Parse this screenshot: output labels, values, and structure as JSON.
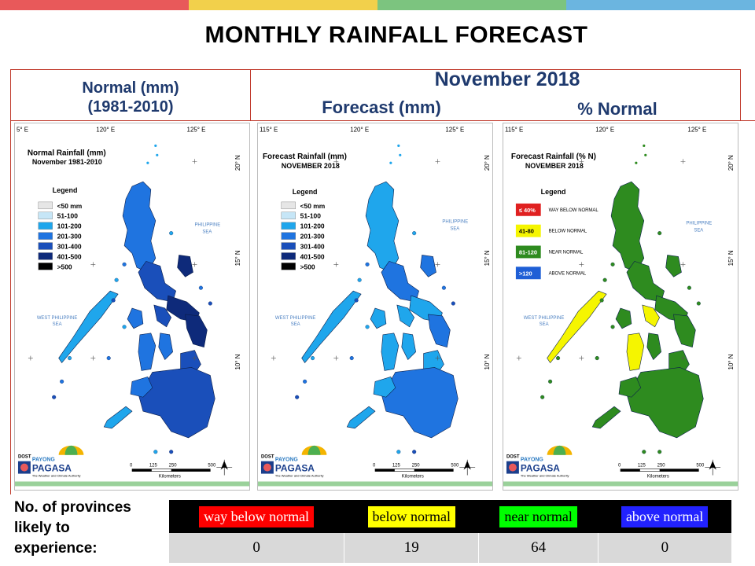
{
  "colors": {
    "topbar": [
      "#e8595a",
      "#f2d04b",
      "#7cc47f",
      "#6bb5e0"
    ],
    "rain": [
      "#e6e6e6",
      "#c6e6f7",
      "#1fa6ec",
      "#1f74e0",
      "#1a4fba",
      "#0e2a7a",
      "#000000"
    ],
    "pct": [
      "#e02020",
      "#f5f500",
      "#2e8b1f",
      "#1f5fd6"
    ]
  },
  "title": "MONTHLY RAINFALL FORECAST",
  "headers": {
    "normal_line1": "Normal (mm)",
    "normal_line2": "(1981-2010)",
    "month": "November 2018",
    "forecast": "Forecast (mm)",
    "pct": "% Normal"
  },
  "maps": {
    "normal": {
      "title_line1": "Normal Rainfall (mm)",
      "title_line2": "November 1981-2010",
      "lon_labels": [
        "5° E",
        "120° E",
        "125° E"
      ]
    },
    "forecast": {
      "title_line1": "Forecast Rainfall (mm)",
      "title_line2": "NOVEMBER 2018",
      "lon_labels": [
        "115° E",
        "120° E",
        "125° E"
      ]
    },
    "pct": {
      "title_line1": "Forecast Rainfall (% N)",
      "title_line2": "NOVEMBER 2018",
      "lon_labels": [
        "115° E",
        "120° E",
        "125° E"
      ]
    },
    "lat_labels": [
      "20° N",
      "15° N",
      "10° N"
    ],
    "philippine_sea": [
      "PHILIPPINE",
      "SEA"
    ],
    "west_philippine_sea": [
      "WEST PHILIPPINE",
      "SEA"
    ],
    "scale_labels": [
      "0",
      "125",
      "250",
      "500"
    ],
    "scale_unit": "Kilometers",
    "logo": {
      "dost": "DOST",
      "payong": "PAYONG",
      "pagasa": "PAGASA",
      "tagline": "The Weather and Climate Authority"
    }
  },
  "legend_title": "Legend",
  "rain_legend": [
    "<50 mm",
    "51-100",
    "101-200",
    "201-300",
    "301-400",
    "401-500",
    ">500"
  ],
  "pct_legend": [
    {
      "range": "≤ 40%",
      "label": "WAY BELOW NORMAL"
    },
    {
      "range": "41-80",
      "label": "BELOW NORMAL"
    },
    {
      "range": "81-120",
      "label": "NEAR NORMAL"
    },
    {
      "range": ">120",
      "label": "ABOVE NORMAL"
    }
  ],
  "bottom": {
    "label_lines": [
      "No. of provinces",
      "likely to",
      "experience:"
    ],
    "categories": [
      {
        "name": "way below normal",
        "count": "0",
        "bg": "#ff0000",
        "fg": "#ffffff"
      },
      {
        "name": "below normal",
        "count": "19",
        "bg": "#ffff00",
        "fg": "#000000"
      },
      {
        "name": "near normal",
        "count": "64",
        "bg": "#00ff00",
        "fg": "#000000"
      },
      {
        "name": "above normal",
        "count": "0",
        "bg": "#2222ff",
        "fg": "#ffffff"
      }
    ]
  }
}
